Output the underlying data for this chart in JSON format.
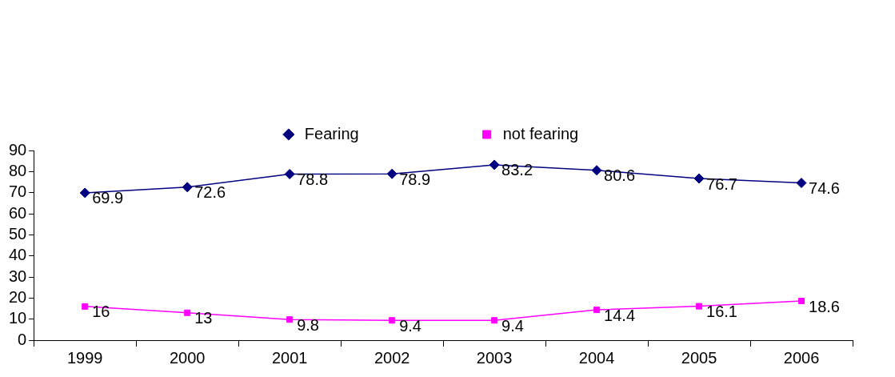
{
  "chart_data": {
    "type": "line",
    "categories": [
      "1999",
      "2000",
      "2001",
      "2002",
      "2003",
      "2004",
      "2005",
      "2006"
    ],
    "series": [
      {
        "name": "Fearing",
        "color": "#000080",
        "marker": "diamond",
        "values": [
          69.9,
          72.6,
          78.8,
          78.9,
          83.2,
          80.6,
          76.7,
          74.6
        ]
      },
      {
        "name": "not fearing",
        "color": "#ff00ff",
        "marker": "square",
        "values": [
          16,
          13,
          9.8,
          9.4,
          9.4,
          14.4,
          16.1,
          18.6
        ]
      }
    ],
    "ylim": [
      0,
      90
    ],
    "yticks": [
      0,
      10,
      20,
      30,
      40,
      50,
      60,
      70,
      80,
      90
    ],
    "grid": false,
    "legend": "top",
    "data_labels": true
  }
}
